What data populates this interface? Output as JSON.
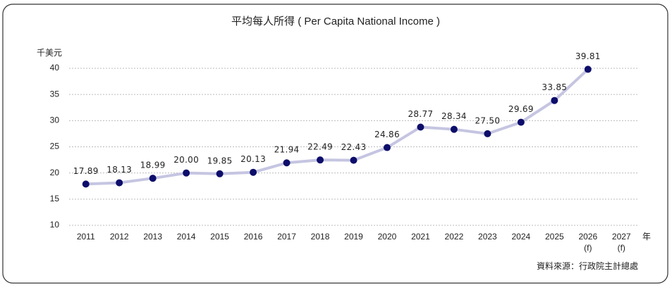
{
  "chart_data": {
    "type": "line",
    "title": "平均每人所得 ( Per Capita National Income )",
    "y_label": "千美元",
    "x_label": "年",
    "source": "資料來源：行政院主計總處",
    "categories": [
      "2011",
      "2012",
      "2013",
      "2014",
      "2015",
      "2016",
      "2017",
      "2018",
      "2019",
      "2020",
      "2021",
      "2022",
      "2023",
      "2024",
      "2025",
      "2026 (f)",
      "2027 (f)"
    ],
    "series": [
      {
        "name": "Per Capita National Income",
        "color": "#c5c5e2",
        "marker_color": "#0d0d6b",
        "values": [
          17.89,
          18.13,
          18.99,
          20.0,
          19.85,
          20.13,
          21.94,
          22.49,
          22.43,
          24.86,
          28.77,
          28.34,
          27.5,
          29.69,
          33.85,
          39.81,
          null
        ],
        "value_labels": [
          "17.89",
          "18.13",
          "18.99",
          "20.00",
          "19.85",
          "20.13",
          "21.94",
          "22.49",
          "22.43",
          "24.86",
          "28.77",
          "28.34",
          "27.50",
          "29.69",
          "33.85",
          "39.81",
          null
        ]
      }
    ],
    "ylim": [
      10,
      40
    ],
    "yticks": [
      10,
      15,
      20,
      25,
      30,
      35,
      40
    ],
    "grid": true
  }
}
